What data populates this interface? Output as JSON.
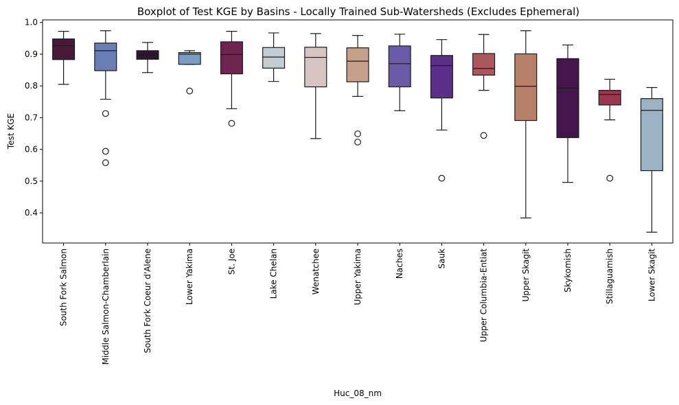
{
  "chart_data": {
    "type": "boxplot",
    "title": "Boxplot of Test KGE by Basins - Locally Trained Sub-Watersheds (Excludes Ephemeral)",
    "xlabel": "Huc_08_nm",
    "ylabel": "Test KGE",
    "ylim": [
      0.305,
      1.008
    ],
    "yticks": [
      "0.4",
      "0.5",
      "0.6",
      "0.7",
      "0.8",
      "0.9",
      "1.0"
    ],
    "grid": false,
    "categories": [
      "South Fork Salmon",
      "Middle Salmon-Chamberlain",
      "South Fork Coeur d'Alene",
      "Lower Yakima",
      "St. Joe",
      "Lake Chelan",
      "Wenatchee",
      "Upper Yakima",
      "Naches",
      "Sauk",
      "Upper Columbia-Entiat",
      "Upper Skagit",
      "Skykomish",
      "Stillaguamish",
      "Lower Skagit"
    ],
    "boxes": [
      {
        "whisker_low": 0.805,
        "q1": 0.883,
        "median": 0.926,
        "q3": 0.948,
        "whisker_high": 0.972,
        "outliers": [],
        "color": "#4a1838"
      },
      {
        "whisker_low": 0.758,
        "q1": 0.848,
        "median": 0.911,
        "q3": 0.935,
        "whisker_high": 0.974,
        "outliers": [
          0.713,
          0.594,
          0.558
        ],
        "color": "#6b7db5"
      },
      {
        "whisker_low": 0.842,
        "q1": 0.884,
        "median": 0.898,
        "q3": 0.911,
        "whisker_high": 0.937,
        "outliers": [],
        "color": "#2e1530"
      },
      {
        "whisker_low": 0.868,
        "q1": 0.868,
        "median": 0.9,
        "q3": 0.905,
        "whisker_high": 0.911,
        "outliers": [
          0.784
        ],
        "color": "#7a9cc2"
      },
      {
        "whisker_low": 0.728,
        "q1": 0.838,
        "median": 0.899,
        "q3": 0.939,
        "whisker_high": 0.972,
        "outliers": [
          0.682
        ],
        "color": "#6e2450"
      },
      {
        "whisker_low": 0.814,
        "q1": 0.856,
        "median": 0.891,
        "q3": 0.921,
        "whisker_high": 0.967,
        "outliers": [],
        "color": "#c5cdd4"
      },
      {
        "whisker_low": 0.634,
        "q1": 0.797,
        "median": 0.89,
        "q3": 0.922,
        "whisker_high": 0.965,
        "outliers": [],
        "color": "#d5c4c3"
      },
      {
        "whisker_low": 0.767,
        "q1": 0.813,
        "median": 0.878,
        "q3": 0.92,
        "whisker_high": 0.959,
        "outliers": [
          0.649,
          0.623
        ],
        "color": "#c6a08a"
      },
      {
        "whisker_low": 0.722,
        "q1": 0.797,
        "median": 0.87,
        "q3": 0.926,
        "whisker_high": 0.963,
        "outliers": [],
        "color": "#6a5ba8"
      },
      {
        "whisker_low": 0.661,
        "q1": 0.762,
        "median": 0.864,
        "q3": 0.896,
        "whisker_high": 0.946,
        "outliers": [
          0.509
        ],
        "color": "#5b2e87"
      },
      {
        "whisker_low": 0.786,
        "q1": 0.834,
        "median": 0.855,
        "q3": 0.902,
        "whisker_high": 0.962,
        "outliers": [
          0.644
        ],
        "color": "#ac575e"
      },
      {
        "whisker_low": 0.384,
        "q1": 0.691,
        "median": 0.799,
        "q3": 0.901,
        "whisker_high": 0.974,
        "outliers": [],
        "color": "#b88068"
      },
      {
        "whisker_low": 0.496,
        "q1": 0.637,
        "median": 0.793,
        "q3": 0.886,
        "whisker_high": 0.929,
        "outliers": [],
        "color": "#45154e"
      },
      {
        "whisker_low": 0.693,
        "q1": 0.74,
        "median": 0.773,
        "q3": 0.786,
        "whisker_high": 0.821,
        "outliers": [
          0.509
        ],
        "color": "#9c3550"
      },
      {
        "whisker_low": 0.339,
        "q1": 0.533,
        "median": 0.723,
        "q3": 0.76,
        "whisker_high": 0.795,
        "outliers": [],
        "color": "#9bb3c4"
      }
    ]
  }
}
